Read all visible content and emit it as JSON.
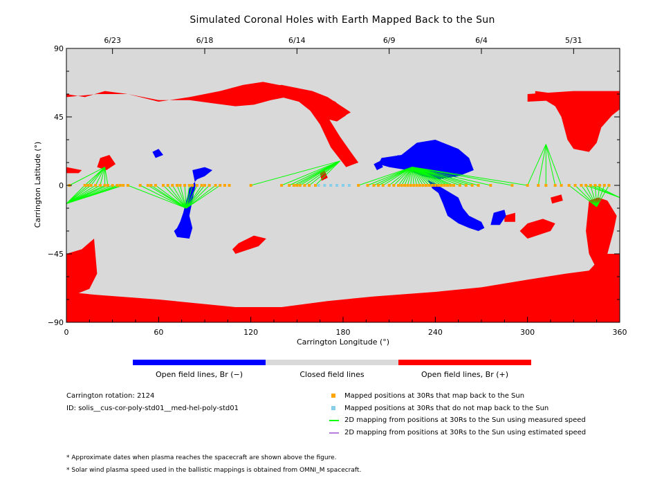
{
  "chart_data": {
    "type": "map",
    "title": "Simulated Coronal Holes with Earth Mapped Back to the Sun",
    "xlabel": "Carrington Longitude (°)",
    "ylabel": "Carrington Latitude (°)",
    "xlim": [
      0,
      360
    ],
    "ylim": [
      -90,
      90
    ],
    "x_ticks": [
      0,
      60,
      120,
      180,
      240,
      300,
      360
    ],
    "y_ticks": [
      90,
      45,
      0,
      -45,
      -90
    ],
    "x_tick_labels": [
      "0",
      "60",
      "120",
      "180",
      "240",
      "300",
      "360"
    ],
    "y_tick_labels": [
      "90",
      "45",
      "0",
      "−45",
      "−90"
    ],
    "top_axis": {
      "dates": [
        {
          "label": "6/23",
          "lon": 30
        },
        {
          "label": "6/18",
          "lon": 90
        },
        {
          "label": "6/14",
          "lon": 150
        },
        {
          "label": "6/9",
          "lon": 210
        },
        {
          "label": "6/4",
          "lon": 270
        },
        {
          "label": "5/31",
          "lon": 330
        }
      ]
    },
    "colors": {
      "closed": "#d9d9d9",
      "open_negative": "#0000ff",
      "open_positive": "#ff0000",
      "mapped": "#ffa500",
      "not_mapped": "#87ceeb",
      "measured_line": "#00ff00",
      "estimated_line": "#b57edc"
    },
    "regions": {
      "positive": [
        [
          [
            0,
            -45
          ],
          [
            10,
            -42
          ],
          [
            18,
            -35
          ],
          [
            20,
            -58
          ],
          [
            15,
            -68
          ],
          [
            5,
            -72
          ],
          [
            0,
            -72
          ]
        ],
        [
          [
            0,
            -70
          ],
          [
            20,
            -72
          ],
          [
            60,
            -75
          ],
          [
            110,
            -80
          ],
          [
            140,
            -80
          ],
          [
            170,
            -76
          ],
          [
            200,
            -73
          ],
          [
            240,
            -70
          ],
          [
            270,
            -67
          ],
          [
            300,
            -62
          ],
          [
            325,
            -58
          ],
          [
            340,
            -56
          ],
          [
            350,
            -45
          ],
          [
            360,
            -45
          ],
          [
            360,
            -90
          ],
          [
            0,
            -90
          ]
        ],
        [
          [
            0,
            60
          ],
          [
            12,
            58
          ],
          [
            25,
            62
          ],
          [
            40,
            60
          ],
          [
            60,
            55
          ],
          [
            80,
            58
          ],
          [
            100,
            62
          ],
          [
            115,
            66
          ],
          [
            128,
            68
          ],
          [
            138,
            66
          ],
          [
            150,
            64
          ],
          [
            160,
            60
          ],
          [
            168,
            58
          ],
          [
            175,
            55
          ],
          [
            178,
            52
          ],
          [
            182,
            46
          ],
          [
            176,
            42
          ],
          [
            168,
            44
          ],
          [
            160,
            48
          ],
          [
            155,
            52
          ],
          [
            150,
            56
          ],
          [
            143,
            58
          ],
          [
            133,
            56
          ],
          [
            122,
            53
          ],
          [
            110,
            52
          ],
          [
            95,
            54
          ],
          [
            80,
            56
          ],
          [
            60,
            56
          ],
          [
            40,
            60
          ],
          [
            20,
            60
          ],
          [
            0,
            58
          ]
        ],
        [
          [
            125,
            64
          ],
          [
            140,
            66
          ],
          [
            160,
            62
          ],
          [
            170,
            58
          ],
          [
            185,
            48
          ],
          [
            178,
            44
          ],
          [
            168,
            48
          ],
          [
            155,
            54
          ],
          [
            140,
            58
          ],
          [
            125,
            58
          ]
        ],
        [
          [
            160,
            55
          ],
          [
            170,
            45
          ],
          [
            178,
            32
          ],
          [
            185,
            22
          ],
          [
            190,
            15
          ],
          [
            182,
            12
          ],
          [
            172,
            25
          ],
          [
            165,
            40
          ],
          [
            158,
            50
          ]
        ],
        [
          [
            0,
            12
          ],
          [
            10,
            10
          ],
          [
            8,
            8
          ],
          [
            0,
            8
          ]
        ],
        [
          [
            300,
            -35
          ],
          [
            315,
            -30
          ],
          [
            318,
            -25
          ],
          [
            310,
            -22
          ],
          [
            300,
            -25
          ],
          [
            295,
            -30
          ]
        ],
        [
          [
            110,
            -45
          ],
          [
            125,
            -40
          ],
          [
            130,
            -35
          ],
          [
            122,
            -33
          ],
          [
            112,
            -38
          ],
          [
            108,
            -42
          ]
        ],
        [
          [
            300,
            55
          ],
          [
            320,
            56
          ],
          [
            340,
            54
          ],
          [
            360,
            50
          ],
          [
            360,
            62
          ],
          [
            330,
            62
          ],
          [
            300,
            60
          ]
        ],
        [
          [
            305,
            60
          ],
          [
            318,
            52
          ],
          [
            322,
            45
          ],
          [
            326,
            30
          ],
          [
            330,
            24
          ],
          [
            340,
            22
          ],
          [
            345,
            28
          ],
          [
            348,
            38
          ],
          [
            355,
            46
          ],
          [
            360,
            50
          ],
          [
            360,
            55
          ],
          [
            340,
            58
          ],
          [
            320,
            60
          ],
          [
            305,
            62
          ]
        ],
        [
          [
            340,
            -10
          ],
          [
            346,
            -8
          ],
          [
            352,
            -10
          ],
          [
            358,
            -20
          ],
          [
            356,
            -30
          ],
          [
            352,
            -45
          ],
          [
            345,
            -55
          ],
          [
            340,
            -45
          ],
          [
            338,
            -30
          ],
          [
            339,
            -20
          ]
        ],
        [
          [
            355,
            -50
          ],
          [
            360,
            -48
          ],
          [
            360,
            -66
          ],
          [
            353,
            -62
          ],
          [
            352,
            -56
          ]
        ],
        [
          [
            315,
            -8
          ],
          [
            322,
            -6
          ],
          [
            323,
            -10
          ],
          [
            316,
            -12
          ]
        ],
        [
          [
            285,
            -20
          ],
          [
            292,
            -18
          ],
          [
            292,
            -24
          ],
          [
            285,
            -24
          ]
        ],
        [
          [
            165,
            8
          ],
          [
            168,
            10
          ],
          [
            170,
            5
          ],
          [
            166,
            3
          ]
        ],
        [
          [
            22,
            18
          ],
          [
            28,
            20
          ],
          [
            32,
            14
          ],
          [
            26,
            10
          ],
          [
            20,
            12
          ]
        ]
      ],
      "negative": [
        [
          [
            205,
            18
          ],
          [
            218,
            20
          ],
          [
            228,
            28
          ],
          [
            240,
            30
          ],
          [
            255,
            24
          ],
          [
            262,
            18
          ],
          [
            265,
            10
          ],
          [
            255,
            6
          ],
          [
            242,
            4
          ],
          [
            232,
            6
          ],
          [
            222,
            10
          ],
          [
            210,
            12
          ],
          [
            203,
            14
          ]
        ],
        [
          [
            235,
            4
          ],
          [
            245,
            -2
          ],
          [
            255,
            -8
          ],
          [
            258,
            -15
          ],
          [
            262,
            -20
          ],
          [
            266,
            -22
          ],
          [
            270,
            -24
          ],
          [
            272,
            -28
          ],
          [
            268,
            -30
          ],
          [
            262,
            -28
          ],
          [
            255,
            -25
          ],
          [
            248,
            -20
          ],
          [
            245,
            -12
          ],
          [
            242,
            -5
          ],
          [
            238,
            -2
          ]
        ],
        [
          [
            278,
            -18
          ],
          [
            285,
            -16
          ],
          [
            286,
            -20
          ],
          [
            282,
            -26
          ],
          [
            276,
            -26
          ]
        ],
        [
          [
            82,
            10
          ],
          [
            90,
            12
          ],
          [
            95,
            10
          ],
          [
            90,
            6
          ],
          [
            85,
            4
          ],
          [
            80,
            -2
          ],
          [
            78,
            -10
          ],
          [
            76,
            -18
          ],
          [
            74,
            -24
          ],
          [
            72,
            -28
          ],
          [
            70,
            -30
          ],
          [
            72,
            -34
          ],
          [
            80,
            -35
          ],
          [
            82,
            -28
          ],
          [
            80,
            -20
          ],
          [
            82,
            -10
          ],
          [
            84,
            0
          ]
        ],
        [
          [
            56,
            22
          ],
          [
            60,
            24
          ],
          [
            63,
            20
          ],
          [
            58,
            18
          ]
        ],
        [
          [
            200,
            14
          ],
          [
            204,
            16
          ],
          [
            206,
            12
          ],
          [
            202,
            10
          ]
        ],
        [
          [
            210,
            16
          ],
          [
            216,
            20
          ],
          [
            218,
            14
          ],
          [
            212,
            12
          ]
        ]
      ]
    },
    "mapped_positions_lon": [
      2,
      12,
      14,
      16,
      19,
      22,
      25,
      27,
      30,
      33,
      35,
      37,
      40,
      48,
      53,
      55,
      58,
      63,
      66,
      69,
      72,
      74,
      77,
      80,
      82,
      85,
      88,
      90,
      93,
      97,
      100,
      103,
      106,
      120,
      140,
      145,
      148,
      150,
      152,
      155,
      158,
      162,
      190,
      196,
      200,
      203,
      206,
      210,
      213,
      216,
      218,
      220,
      222,
      224,
      226,
      228,
      230,
      232,
      234,
      236,
      238,
      240,
      242,
      244,
      246,
      248,
      250,
      252,
      256,
      260,
      264,
      268,
      276,
      290,
      300,
      307,
      312,
      318,
      322,
      327,
      331,
      335,
      338,
      341,
      344,
      347,
      350,
      353
    ],
    "mapped_positions_lat": 0,
    "not_mapped_positions_lon": [
      164,
      168,
      172,
      176,
      180,
      184
    ],
    "footpoints": [
      {
        "lon": 25,
        "lat": 12,
        "from": [
          2,
          12,
          14,
          16,
          19,
          22,
          25,
          27
        ]
      },
      {
        "lon": 0,
        "lat": -12,
        "from": [
          12,
          14,
          16,
          19,
          22,
          25,
          27,
          30,
          33,
          35,
          37
        ]
      },
      {
        "lon": 78,
        "lat": -15,
        "from": [
          40,
          48,
          53,
          55,
          58,
          63,
          66,
          69,
          72,
          74,
          77,
          80,
          82,
          85,
          88,
          90,
          93,
          97,
          100
        ]
      },
      {
        "lon": 178,
        "lat": 16,
        "from": [
          120,
          140,
          145,
          148,
          150,
          152,
          155,
          158,
          162
        ]
      },
      {
        "lon": 225,
        "lat": 12,
        "from": [
          190,
          196,
          200,
          203,
          206,
          210,
          213,
          216,
          218,
          220,
          222,
          224,
          226,
          228,
          230,
          232,
          234,
          236,
          238,
          240,
          242,
          244,
          246,
          248,
          250,
          252,
          256,
          260,
          264,
          268,
          276,
          290,
          300
        ]
      },
      {
        "lon": 312,
        "lat": 27,
        "from": [
          300,
          307,
          312,
          318,
          322
        ]
      },
      {
        "lon": 345,
        "lat": -14,
        "from": [
          327,
          331,
          335,
          338,
          341,
          344,
          347,
          350,
          353
        ]
      },
      {
        "lon": 360,
        "lat": -8,
        "from": [
          338,
          341,
          344
        ]
      }
    ]
  },
  "colorbar": {
    "labels": {
      "negative": "Open field lines, Br (−)",
      "closed": "Closed field lines",
      "positive": "Open field lines, Br (+)"
    }
  },
  "info": {
    "rotation": "Carrington rotation: 2124",
    "id": "ID: solis__cus-cor-poly-std01__med-hel-poly-std01"
  },
  "legend": {
    "mapped": "Mapped positions at 30Rs that map back to the Sun",
    "not_mapped": "Mapped positions at 30Rs that do not map back to the Sun",
    "measured": "2D mapping from positions at 30Rs to the Sun using measured speed",
    "estimated": "2D mapping from positions at 30Rs to the Sun using estimated speed"
  },
  "notes": {
    "note1": "* Approximate dates when plasma reaches the spacecraft are shown above the figure.",
    "note2": "* Solar wind plasma speed used in the ballistic mappings is obtained from OMNI_M spacecraft."
  }
}
